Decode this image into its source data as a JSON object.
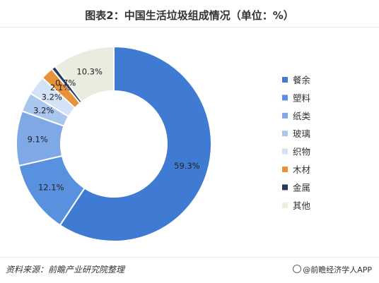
{
  "title": "图表2：中国生活垃圾组成情况（单位：%）",
  "source": "资料来源：前瞻产业研究院整理",
  "credit": "前瞻经济学人APP",
  "chart_data": {
    "type": "pie",
    "title": "图表2：中国生活垃圾组成情况（单位：%）",
    "donut": true,
    "legend_position": "right",
    "slices": [
      {
        "name": "餐余",
        "value": 59.3,
        "label": "59.3%",
        "color": "#3f7bd2"
      },
      {
        "name": "塑料",
        "value": 12.1,
        "label": "12.1%",
        "color": "#5a91de"
      },
      {
        "name": "纸类",
        "value": 9.1,
        "label": "9.1%",
        "color": "#7ea8e6"
      },
      {
        "name": "玻璃",
        "value": 3.2,
        "label": "3.2%",
        "color": "#a9c6ef"
      },
      {
        "name": "织物",
        "value": 3.2,
        "label": "3.2%",
        "color": "#d3e2f7"
      },
      {
        "name": "木材",
        "value": 2.1,
        "label": "2.1%",
        "color": "#e8923a"
      },
      {
        "name": "金属",
        "value": 0.7,
        "label": "0.7%",
        "color": "#243a5e"
      },
      {
        "name": "其他",
        "value": 10.3,
        "label": "10.3%",
        "color": "#e9eddf"
      }
    ]
  }
}
